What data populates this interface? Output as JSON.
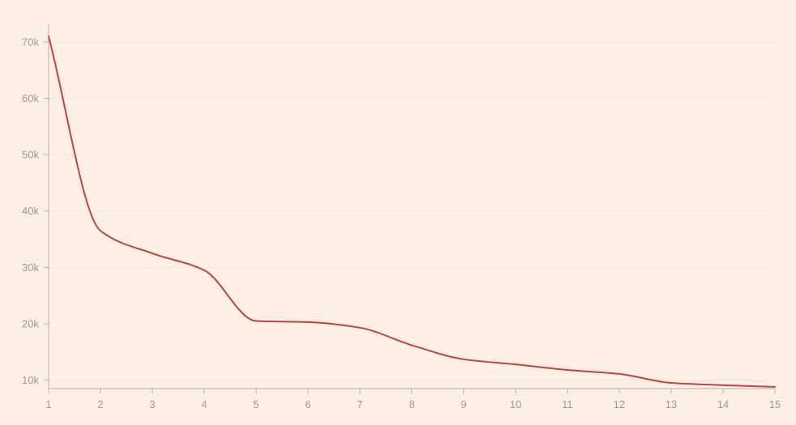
{
  "colors": {
    "background": "#fcf0e6",
    "line": "#c0443a",
    "axis": "#b9aea6",
    "grid": "#f3e6dc",
    "tick_text": "#a09890"
  },
  "chart_data": {
    "type": "line",
    "title": "",
    "xlabel": "",
    "ylabel": "",
    "grid": true,
    "legend": "none",
    "xlim": [
      1,
      15
    ],
    "ylim": [
      8500,
      72000
    ],
    "x_ticks": [
      1,
      2,
      3,
      4,
      5,
      6,
      7,
      8,
      9,
      10,
      11,
      12,
      13,
      14,
      15
    ],
    "x_tick_labels": [
      "1",
      "2",
      "3",
      "4",
      "5",
      "6",
      "7",
      "8",
      "9",
      "10",
      "11",
      "12",
      "13",
      "14",
      "15"
    ],
    "y_ticks": [
      10000,
      20000,
      30000,
      40000,
      50000,
      60000,
      70000
    ],
    "y_tick_labels": [
      "10k",
      "20k",
      "30k",
      "40k",
      "50k",
      "60k",
      "70k"
    ],
    "series": [
      {
        "x": [
          1,
          2,
          3,
          4,
          5,
          6,
          7,
          8,
          9,
          10,
          11,
          12,
          13,
          14,
          15
        ],
        "values": [
          71000,
          36500,
          32500,
          29500,
          20500,
          20300,
          19300,
          16200,
          13700,
          12800,
          11800,
          11100,
          9500,
          9100,
          8800
        ]
      }
    ]
  }
}
